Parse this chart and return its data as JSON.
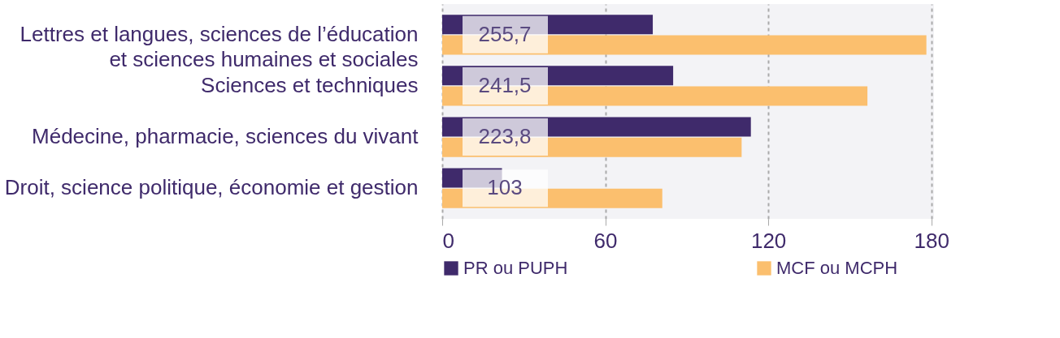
{
  "chart_data": {
    "type": "bar",
    "orientation": "horizontal",
    "categories": [
      "Lettres et langues, sciences de l’éducation\net sciences humaines et sociales",
      "Sciences et techniques",
      "Médecine, pharmacie, sciences du vivant",
      "Droit, science politique, économie et gestion"
    ],
    "series": [
      {
        "name": "PR ou PUPH",
        "color": "#3f2a6b",
        "values": [
          77.5,
          85,
          113.6,
          22
        ]
      },
      {
        "name": "MCF ou MCPH",
        "color": "#fbbf6e",
        "values": [
          178.2,
          156.5,
          110.2,
          81
        ]
      }
    ],
    "totals": [
      "255,7",
      "241,5",
      "223,8",
      "103"
    ],
    "xlim": [
      0,
      181
    ],
    "xticks": [
      0,
      60,
      120,
      180
    ],
    "grid": "x",
    "legend": "bottom"
  }
}
